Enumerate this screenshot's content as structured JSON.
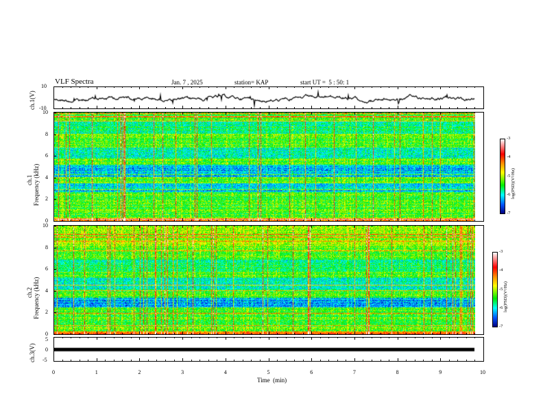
{
  "header": {
    "title": "VLF Spectra",
    "date": "Jan. 7 , 2025",
    "station": "station= KAP",
    "start": "start UT =  5 : 50: 1"
  },
  "chart_data": [
    {
      "type": "line",
      "name": "ch1-waveform",
      "ylabel": "ch.1(V)",
      "ylim": [
        -10,
        10
      ],
      "yticks": [
        "10",
        "-10"
      ],
      "xlim": [
        0,
        10
      ]
    },
    {
      "type": "heatmap",
      "name": "ch1-spectrogram",
      "ylabel_line1": "ch.1",
      "ylabel_line2": "Frequency (kHz)",
      "ylim": [
        0,
        10
      ],
      "yticks": [
        "0",
        "2",
        "4",
        "6",
        "8",
        "10"
      ],
      "xlim": [
        0,
        9.8
      ],
      "colorbar": {
        "label": "log(PSD)(V²/Hz)",
        "range": [
          -7,
          -3
        ],
        "ticks": [
          "-3",
          "-4",
          "-5",
          "-6",
          "-7"
        ]
      }
    },
    {
      "type": "heatmap",
      "name": "ch2-spectrogram",
      "ylabel_line1": "ch.2",
      "ylabel_line2": "Frequency (kHz)",
      "ylim": [
        0,
        10
      ],
      "yticks": [
        "0",
        "2",
        "4",
        "6",
        "8",
        "10"
      ],
      "xlim": [
        0,
        9.8
      ],
      "colorbar": {
        "label": "log(PSD)(V²/Hz)",
        "range": [
          -7,
          -3
        ],
        "ticks": [
          "-3",
          "-4",
          "-5",
          "-6",
          "-7"
        ]
      }
    },
    {
      "type": "line",
      "name": "ch3-waveform",
      "ylabel": "ch.3(V)",
      "ylim": [
        -5,
        5
      ],
      "yticks": [
        "5",
        "0",
        "-5"
      ],
      "xlim": [
        0,
        10
      ],
      "level": -0.1
    }
  ],
  "xaxis": {
    "label": "Time  (min)",
    "ticks": [
      "0",
      "1",
      "2",
      "3",
      "4",
      "5",
      "6",
      "7",
      "8",
      "9",
      "10"
    ]
  }
}
